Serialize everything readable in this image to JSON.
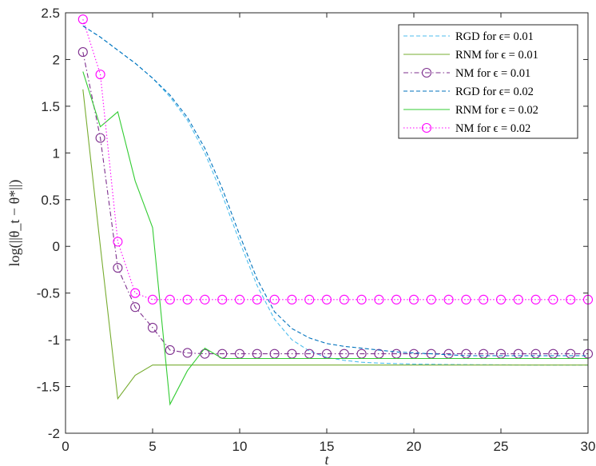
{
  "chart_data": {
    "type": "line",
    "title": "",
    "xlabel": "t",
    "ylabel": "log(||θ_t − θ*||)",
    "xlim": [
      0,
      30
    ],
    "ylim": [
      -2,
      2.5
    ],
    "xticks": [
      0,
      5,
      10,
      15,
      20,
      25,
      30
    ],
    "yticks": [
      2.5,
      2,
      1.5,
      1,
      0.5,
      0,
      -0.5,
      -1,
      -1.5,
      -2
    ],
    "ytick_labels": [
      "2.5",
      "2",
      "1.5",
      "1",
      "0.5",
      "0",
      "-0.5",
      "-1",
      "-1.5",
      "-2"
    ],
    "xtick_labels": [
      "0",
      "5",
      "10",
      "15",
      "20",
      "25",
      "30"
    ],
    "grid": false,
    "legend_position": "top-right",
    "series": [
      {
        "name": "RGD for ϵ= 0.01",
        "color": "#4dbeee",
        "style": "dashed",
        "marker": "none",
        "x": [
          1,
          2,
          3,
          4,
          5,
          6,
          7,
          8,
          9,
          10,
          11,
          12,
          13,
          14,
          15,
          16,
          17,
          18,
          19,
          20,
          21,
          22,
          23,
          24,
          25,
          26,
          27,
          28,
          29,
          30
        ],
        "y": [
          2.36,
          2.24,
          2.1,
          1.96,
          1.8,
          1.6,
          1.35,
          1.0,
          0.55,
          0.05,
          -0.42,
          -0.78,
          -1.0,
          -1.12,
          -1.19,
          -1.22,
          -1.24,
          -1.25,
          -1.255,
          -1.26,
          -1.262,
          -1.264,
          -1.266,
          -1.267,
          -1.268,
          -1.269,
          -1.27,
          -1.27,
          -1.27,
          -1.27
        ]
      },
      {
        "name": "RNM for ϵ = 0.01",
        "color": "#77ac30",
        "style": "solid",
        "marker": "none",
        "x": [
          1,
          2,
          3,
          4,
          5,
          6,
          7,
          8,
          9,
          10,
          11,
          12,
          13,
          14,
          15,
          16,
          17,
          18,
          19,
          20,
          21,
          22,
          23,
          24,
          25,
          26,
          27,
          28,
          29,
          30
        ],
        "y": [
          1.68,
          0.0,
          -1.63,
          -1.38,
          -1.27,
          -1.27,
          -1.27,
          -1.27,
          -1.27,
          -1.27,
          -1.27,
          -1.27,
          -1.27,
          -1.27,
          -1.27,
          -1.27,
          -1.27,
          -1.27,
          -1.27,
          -1.27,
          -1.27,
          -1.27,
          -1.27,
          -1.27,
          -1.27,
          -1.27,
          -1.27,
          -1.27,
          -1.27,
          -1.27
        ]
      },
      {
        "name": "NM for ϵ = 0.01",
        "color": "#7e2f8e",
        "style": "dashdot",
        "marker": "circle",
        "x": [
          1,
          2,
          3,
          4,
          5,
          6,
          7,
          8,
          9,
          10,
          11,
          12,
          13,
          14,
          15,
          16,
          17,
          18,
          19,
          20,
          21,
          22,
          23,
          24,
          25,
          26,
          27,
          28,
          29,
          30
        ],
        "y": [
          2.08,
          1.16,
          -0.23,
          -0.65,
          -0.87,
          -1.11,
          -1.14,
          -1.15,
          -1.15,
          -1.15,
          -1.15,
          -1.15,
          -1.15,
          -1.15,
          -1.15,
          -1.15,
          -1.15,
          -1.15,
          -1.15,
          -1.15,
          -1.15,
          -1.15,
          -1.15,
          -1.15,
          -1.15,
          -1.15,
          -1.15,
          -1.15,
          -1.15,
          -1.15
        ]
      },
      {
        "name": "RGD for ϵ= 0.02",
        "color": "#0072bd",
        "style": "dashed",
        "marker": "none",
        "x": [
          1,
          2,
          3,
          4,
          5,
          6,
          7,
          8,
          9,
          10,
          11,
          12,
          13,
          14,
          15,
          16,
          17,
          18,
          19,
          20,
          21,
          22,
          23,
          24,
          25,
          26,
          27,
          28,
          29,
          30
        ],
        "y": [
          2.36,
          2.24,
          2.1,
          1.96,
          1.8,
          1.62,
          1.38,
          1.05,
          0.62,
          0.12,
          -0.35,
          -0.7,
          -0.88,
          -0.98,
          -1.04,
          -1.07,
          -1.09,
          -1.11,
          -1.13,
          -1.14,
          -1.15,
          -1.16,
          -1.17,
          -1.17,
          -1.17,
          -1.17,
          -1.17,
          -1.17,
          -1.17,
          -1.17
        ]
      },
      {
        "name": "RNM for ϵ = 0.02",
        "color": "#33cc33",
        "style": "solid",
        "marker": "none",
        "x": [
          1,
          2,
          3,
          4,
          5,
          6,
          7,
          8,
          9,
          10,
          11,
          12,
          13,
          14,
          15,
          16,
          17,
          18,
          19,
          20,
          21,
          22,
          23,
          24,
          25,
          26,
          27,
          28,
          29,
          30
        ],
        "y": [
          1.87,
          1.28,
          1.44,
          0.7,
          0.2,
          -1.69,
          -1.33,
          -1.09,
          -1.2,
          -1.2,
          -1.2,
          -1.2,
          -1.2,
          -1.2,
          -1.2,
          -1.2,
          -1.2,
          -1.2,
          -1.2,
          -1.2,
          -1.2,
          -1.2,
          -1.2,
          -1.2,
          -1.2,
          -1.2,
          -1.2,
          -1.2,
          -1.2,
          -1.2
        ]
      },
      {
        "name": "NM for ϵ = 0.02",
        "color": "#ff00ff",
        "style": "dotted",
        "marker": "circle",
        "x": [
          1,
          2,
          3,
          4,
          5,
          6,
          7,
          8,
          9,
          10,
          11,
          12,
          13,
          14,
          15,
          16,
          17,
          18,
          19,
          20,
          21,
          22,
          23,
          24,
          25,
          26,
          27,
          28,
          29,
          30
        ],
        "y": [
          2.43,
          1.84,
          0.05,
          -0.5,
          -0.57,
          -0.57,
          -0.57,
          -0.57,
          -0.57,
          -0.57,
          -0.57,
          -0.57,
          -0.57,
          -0.57,
          -0.57,
          -0.57,
          -0.57,
          -0.57,
          -0.57,
          -0.57,
          -0.57,
          -0.57,
          -0.57,
          -0.57,
          -0.57,
          -0.57,
          -0.57,
          -0.57,
          -0.57,
          -0.57
        ]
      }
    ]
  }
}
